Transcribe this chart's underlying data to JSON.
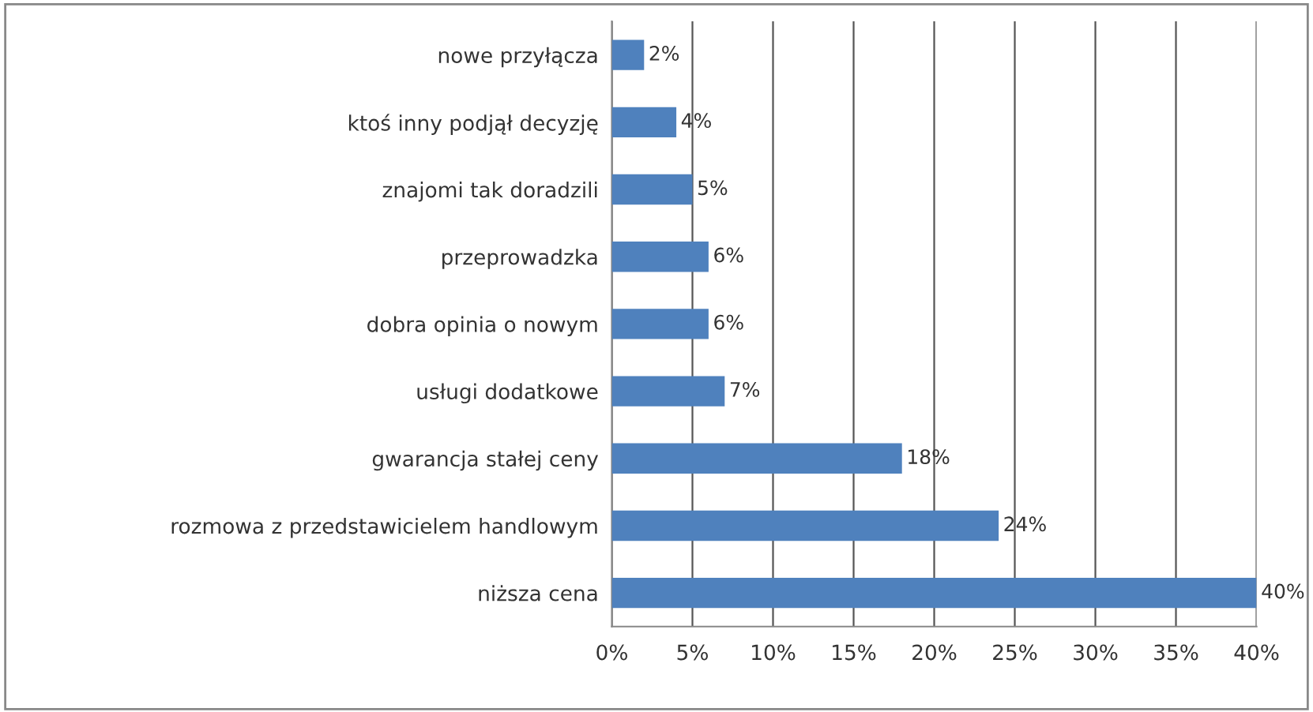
{
  "chart_data": {
    "type": "bar",
    "orientation": "horizontal",
    "categories": [
      "nowe przyłącza",
      "ktoś inny podjął decyzję",
      "znajomi tak doradzili",
      "przeprowadzka",
      "dobra opinia o nowym",
      "usługi dodatkowe",
      "gwarancja stałej ceny",
      "rozmowa z przedstawicielem handlowym",
      "niższa cena"
    ],
    "values": [
      2,
      4,
      5,
      6,
      6,
      7,
      18,
      24,
      40
    ],
    "value_labels": [
      "2%",
      "4%",
      "5%",
      "6%",
      "6%",
      "7%",
      "18%",
      "24%",
      "40%"
    ],
    "color": "#4f81bd",
    "xlim": [
      0,
      40
    ],
    "xticks": [
      {
        "value": 0,
        "label": "0%"
      },
      {
        "value": 5,
        "label": "5%"
      },
      {
        "value": 10,
        "label": "10%"
      },
      {
        "value": 15,
        "label": "15%"
      },
      {
        "value": 20,
        "label": "20%"
      },
      {
        "value": 25,
        "label": "25%"
      },
      {
        "value": 30,
        "label": "30%"
      },
      {
        "value": 35,
        "label": "35%"
      },
      {
        "value": 40,
        "label": "40%"
      }
    ],
    "grid": "x",
    "legend": false
  }
}
